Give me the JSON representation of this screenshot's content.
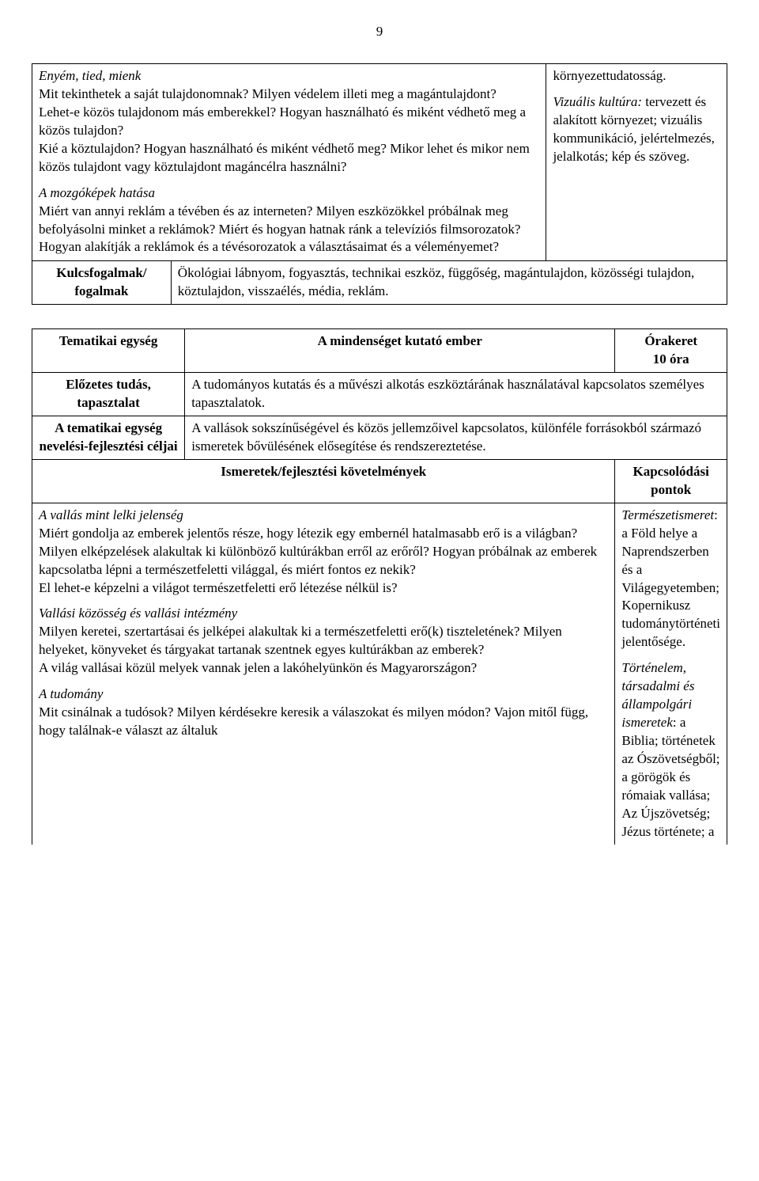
{
  "page_number": "9",
  "table1": {
    "left_p1_title_italic": "Enyém, tied, mienk",
    "left_p1_body": "Mit tekinthetek a saját tulajdonomnak? Milyen védelem illeti meg a magántulajdont?\nLehet-e közös tulajdonom más emberekkel? Hogyan használható és miként védhető meg a közös tulajdon?\nKié a köztulajdon? Hogyan használható és miként védhető meg? Mikor lehet és mikor nem közös tulajdont vagy köztulajdont magáncélra használni?",
    "left_p2_title_italic": "A mozgóképek hatása",
    "left_p2_body": "Miért van annyi reklám a tévében és az interneten? Milyen eszközökkel próbálnak meg befolyásolni minket a reklámok? Miért és hogyan hatnak ránk a televíziós filmsorozatok? Hogyan alakítják a reklámok és a tévésorozatok a választásaimat és a véleményemet?",
    "right_word": "környezettudatosság.",
    "right_p_italic": "Vizuális kultúra:",
    "right_p_rest": " tervezett és alakított környezet; vizuális kommunikáció, jelértelmezés, jelalkotás; kép és szöveg.",
    "kulcs_label": "Kulcsfogalmak/ fogalmak",
    "kulcs_body": "Ökológiai lábnyom, fogyasztás, technikai eszköz, függőség, magántulajdon, közösségi tulajdon, köztulajdon, visszaélés, média, reklám."
  },
  "table2": {
    "r1c1": "Tematikai egység",
    "r1c2": "A mindenséget kutató ember",
    "r1c3a": "Órakeret",
    "r1c3b": "10 óra",
    "r2c1": "Előzetes tudás, tapasztalat",
    "r2c2": "A tudományos kutatás és a művészi alkotás eszköztárának használatával kapcsolatos személyes tapasztalatok.",
    "r3c1": "A tematikai egység nevelési-fejlesztési céljai",
    "r3c2": "A vallások sokszínűségével és közös jellemzőivel kapcsolatos, különféle forrásokból származó ismeretek bővülésének elősegítése és rendszereztetése.",
    "r4c1": "Ismeretek/fejlesztési követelmények",
    "r4c2": "Kapcsolódási pontok",
    "r5_left_p1_title": "A vallás mint lelki jelenség",
    "r5_left_p1_body": "Miért gondolja az emberek jelentős része, hogy létezik egy embernél hatalmasabb erő is a világban? Milyen elképzelések alakultak ki különböző kultúrákban erről az erőről?  Hogyan próbálnak az emberek kapcsolatba lépni a természetfeletti világgal, és miért fontos ez nekik?\nEl lehet-e képzelni a világot természetfeletti erő létezése nélkül is?",
    "r5_left_p2_title": "Vallási közösség és vallási intézmény",
    "r5_left_p2_body": "Milyen keretei, szertartásai és jelképei alakultak ki a természetfeletti erő(k) tiszteletének? Milyen helyeket, könyveket és tárgyakat tartanak szentnek egyes kultúrákban az emberek?\nA világ vallásai közül melyek vannak jelen a lakóhelyünkön és Magyarországon?",
    "r5_left_p3_title": "A tudomány",
    "r5_left_p3_body": "Mit csinálnak a tudósok? Milyen kérdésekre keresik a válaszokat és milyen módon? Vajon mitől függ, hogy találnak-e választ az általuk",
    "r5_right_p1_italic": "Természetismeret",
    "r5_right_p1_rest": ": a Föld helye a Naprendszerben és a Világegyetemben; Kopernikusz tudománytörténeti jelentősége.",
    "r5_right_p2_italic": "Történelem, társadalmi és állampolgári ismeretek",
    "r5_right_p2_rest": ": a Biblia; történetek az Ószövetségből; a görögök és rómaiak vallása; Az Újszövetség; Jézus története; a"
  }
}
